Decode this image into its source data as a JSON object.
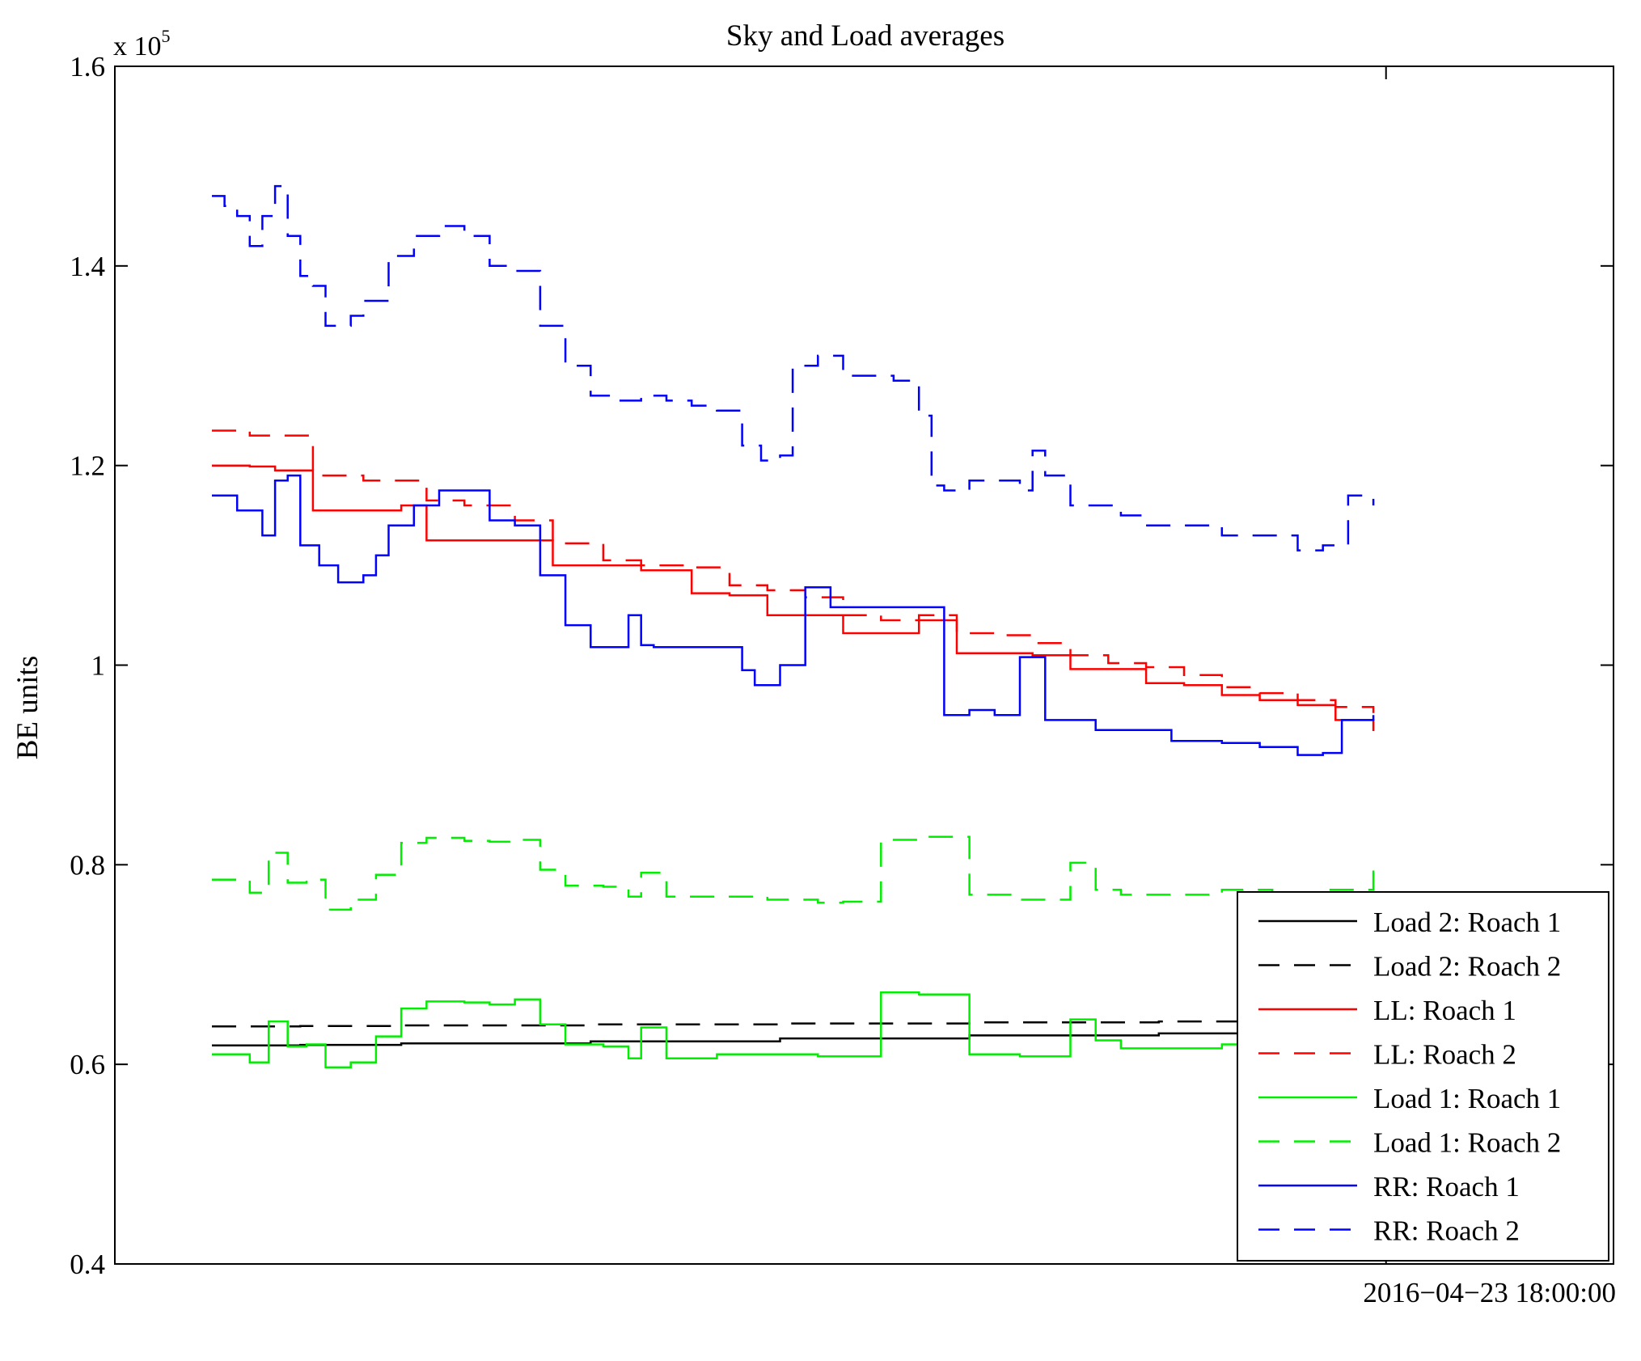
{
  "chart_data": {
    "type": "line",
    "title": "Sky and Load averages",
    "xlabel": "",
    "ylabel": "BE units",
    "y_exponent": "x 10",
    "y_exponent_power": "5",
    "ylim": [
      40000,
      160000
    ],
    "y_ticks": [
      {
        "value": 40000,
        "label": "0.4"
      },
      {
        "value": 60000,
        "label": "0.6"
      },
      {
        "value": 80000,
        "label": "0.8"
      },
      {
        "value": 100000,
        "label": "1"
      },
      {
        "value": 120000,
        "label": "1.2"
      },
      {
        "value": 140000,
        "label": "1.4"
      },
      {
        "value": 160000,
        "label": "1.6"
      }
    ],
    "x_range": [
      0,
      100
    ],
    "x_ticks": [
      {
        "value": 93,
        "label": "2016−04−23 18:00:00"
      }
    ],
    "grid": false,
    "legend_position": "bottom-right",
    "series": [
      {
        "name": "Load 2: Roach 1",
        "color": "#000000",
        "dash": "solid",
        "x": [
          0,
          7,
          15,
          30,
          45,
          60,
          75,
          92
        ],
        "values": [
          61900,
          61950,
          62100,
          62300,
          62600,
          62900,
          63100,
          63200
        ]
      },
      {
        "name": "Load 2: Roach 2",
        "color": "#000000",
        "dash": "dashed",
        "x": [
          0,
          7,
          15,
          30,
          45,
          60,
          75,
          92
        ],
        "values": [
          63800,
          63850,
          63900,
          64000,
          64100,
          64200,
          64300,
          64400
        ]
      },
      {
        "name": "LL: Roach 1",
        "color": "#ff0000",
        "dash": "solid",
        "x": [
          0,
          3,
          5,
          8,
          12,
          15,
          17,
          20,
          24,
          27,
          31,
          34,
          38,
          41,
          44,
          47,
          50,
          53,
          56,
          59,
          62,
          65,
          68,
          71,
          74,
          77,
          80,
          83,
          86,
          89,
          92
        ],
        "values": [
          120000,
          119900,
          119500,
          115500,
          115500,
          116000,
          112500,
          112500,
          112500,
          110000,
          110000,
          109500,
          107200,
          107000,
          105000,
          105000,
          103200,
          103200,
          104500,
          101200,
          101200,
          101000,
          99600,
          99600,
          98200,
          98000,
          97000,
          96500,
          96000,
          94500,
          93400
        ]
      },
      {
        "name": "LL: Roach 2",
        "color": "#ff0000",
        "dash": "dashed",
        "x": [
          0,
          3,
          5,
          8,
          12,
          15,
          17,
          20,
          24,
          27,
          31,
          34,
          38,
          41,
          44,
          47,
          50,
          53,
          56,
          59,
          62,
          65,
          68,
          71,
          74,
          77,
          80,
          83,
          86,
          89,
          92
        ],
        "values": [
          123500,
          123000,
          123000,
          119000,
          118500,
          118500,
          116500,
          116000,
          114500,
          112200,
          110500,
          110000,
          109800,
          108000,
          107500,
          106800,
          105000,
          104500,
          105000,
          103200,
          103000,
          102200,
          101000,
          100200,
          99800,
          99000,
          97800,
          97200,
          96500,
          95800,
          95200
        ]
      },
      {
        "name": "Load 1: Roach 1",
        "color": "#00ee00",
        "dash": "solid",
        "x": [
          0,
          3,
          4.5,
          6,
          7.5,
          9,
          11,
          13,
          15,
          17,
          20,
          22,
          24,
          26,
          28,
          31,
          33,
          34,
          36,
          40,
          44,
          48,
          50,
          53,
          56,
          58,
          60,
          64,
          67,
          68,
          70,
          72,
          76,
          80,
          84,
          88,
          92
        ],
        "values": [
          61000,
          60200,
          64300,
          61800,
          62000,
          59700,
          60200,
          62800,
          65600,
          66300,
          66200,
          66000,
          66500,
          64000,
          62000,
          61800,
          60600,
          63700,
          60600,
          61000,
          61000,
          60800,
          60800,
          67200,
          67000,
          67000,
          61000,
          60800,
          60800,
          64500,
          62400,
          61600,
          61600,
          62000,
          62400,
          62400,
          62400
        ]
      },
      {
        "name": "Load 1: Roach 2",
        "color": "#00ee00",
        "dash": "dashed",
        "x": [
          0,
          3,
          4.5,
          6,
          7.5,
          9,
          11,
          13,
          15,
          17,
          20,
          22,
          24,
          26,
          28,
          31,
          33,
          34,
          36,
          40,
          44,
          48,
          50,
          53,
          56,
          58,
          60,
          64,
          67,
          68,
          70,
          72,
          76,
          80,
          84,
          88,
          92
        ],
        "values": [
          78500,
          77200,
          81200,
          78200,
          78500,
          75500,
          76500,
          79000,
          82200,
          82700,
          82400,
          82300,
          82500,
          79500,
          77900,
          77800,
          76800,
          79200,
          76800,
          76800,
          76500,
          76200,
          76300,
          82500,
          82800,
          82800,
          77000,
          76500,
          76500,
          80200,
          77500,
          77000,
          77000,
          77500,
          77200,
          77500,
          80800
        ]
      },
      {
        "name": "RR: Roach 1",
        "color": "#0000ff",
        "dash": "solid",
        "x": [
          0,
          2,
          4,
          5,
          6,
          7,
          8.5,
          10,
          12,
          13,
          14,
          16,
          18,
          20,
          22,
          24,
          26,
          28,
          30,
          31,
          33,
          34,
          35,
          37,
          41,
          42,
          43,
          44,
          45,
          47,
          49,
          52,
          55,
          58,
          60,
          62,
          64,
          66,
          68,
          70,
          72,
          76,
          80,
          83,
          86,
          88,
          89.5,
          92
        ],
        "values": [
          117000,
          115500,
          113000,
          118500,
          119000,
          112000,
          110000,
          108300,
          109000,
          111000,
          114000,
          116000,
          117500,
          117500,
          114500,
          114000,
          109000,
          104000,
          101800,
          101800,
          105000,
          102000,
          101800,
          101800,
          101800,
          99500,
          98000,
          98000,
          100000,
          107800,
          105800,
          105800,
          105800,
          95000,
          95500,
          95000,
          100800,
          94500,
          94500,
          93500,
          93500,
          92400,
          92200,
          91800,
          91000,
          91200,
          94500,
          95000
        ]
      },
      {
        "name": "RR: Roach 2",
        "color": "#0000ff",
        "dash": "dashed",
        "x": [
          0,
          1,
          2,
          3,
          4,
          5,
          6,
          7,
          8,
          9,
          10,
          11,
          12,
          14,
          16,
          18,
          20,
          22,
          24,
          26,
          28,
          30,
          32,
          34,
          36,
          38,
          40,
          42,
          43.5,
          45,
          46,
          48,
          50,
          54,
          56,
          57,
          58,
          60,
          62,
          64,
          65,
          66,
          68,
          70,
          72,
          74,
          76,
          78,
          80,
          82,
          84,
          86,
          88,
          90,
          92
        ],
        "values": [
          147000,
          146000,
          145000,
          142000,
          145000,
          148000,
          143000,
          139000,
          138000,
          134000,
          134000,
          135000,
          136500,
          141000,
          143000,
          144000,
          143000,
          140000,
          139500,
          134000,
          130000,
          127000,
          126500,
          127000,
          126500,
          126000,
          125500,
          122000,
          120500,
          121000,
          130000,
          131000,
          129000,
          128500,
          125000,
          118000,
          117500,
          118500,
          118500,
          117500,
          121500,
          119000,
          116000,
          116000,
          115000,
          114000,
          114000,
          114000,
          113000,
          113000,
          113000,
          111500,
          112000,
          117000,
          116000
        ]
      }
    ]
  }
}
